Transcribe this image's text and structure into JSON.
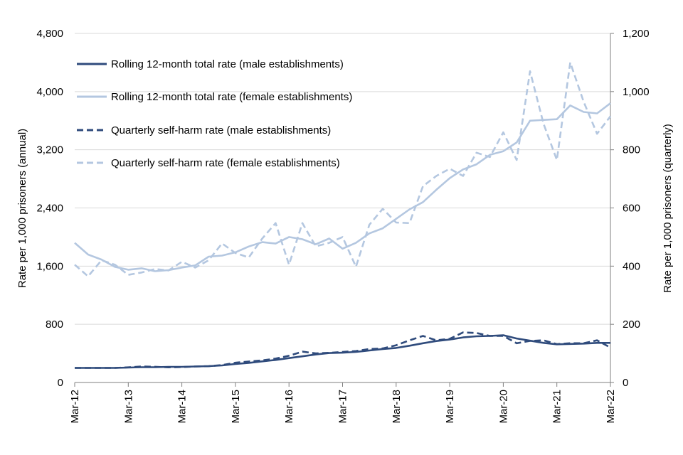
{
  "chart_data": {
    "type": "line",
    "title": "",
    "xlabel": "",
    "ylabel_left": "Rate per 1,000 prisoners (annual)",
    "ylabel_right": "Rate per 1,000 prisoners (quarterly)",
    "ylim_left": [
      0,
      4800
    ],
    "ylim_right": [
      0,
      1200
    ],
    "yticks_left": [
      "0",
      "800",
      "1,600",
      "2,400",
      "3,200",
      "4,000",
      "4,800"
    ],
    "yticks_right": [
      "0",
      "200",
      "400",
      "600",
      "800",
      "1,000",
      "1,200"
    ],
    "xtick_labels": [
      "Mar-12",
      "Mar-13",
      "Mar-14",
      "Mar-15",
      "Mar-16",
      "Mar-17",
      "Mar-18",
      "Mar-19",
      "Mar-20",
      "Mar-21",
      "Mar-22"
    ],
    "x": [
      "Mar-12",
      "Jun-12",
      "Sep-12",
      "Dec-12",
      "Mar-13",
      "Jun-13",
      "Sep-13",
      "Dec-13",
      "Mar-14",
      "Jun-14",
      "Sep-14",
      "Dec-14",
      "Mar-15",
      "Jun-15",
      "Sep-15",
      "Dec-15",
      "Mar-16",
      "Jun-16",
      "Sep-16",
      "Dec-16",
      "Mar-17",
      "Jun-17",
      "Sep-17",
      "Dec-17",
      "Mar-18",
      "Jun-18",
      "Sep-18",
      "Dec-18",
      "Mar-19",
      "Jun-19",
      "Sep-19",
      "Dec-19",
      "Mar-20",
      "Jun-20",
      "Sep-20",
      "Dec-20",
      "Mar-21",
      "Jun-21",
      "Sep-21",
      "Dec-21",
      "Mar-22"
    ],
    "grid": true,
    "legend_position": "top-left",
    "series": [
      {
        "name": "Rolling 12-month total rate (male establishments)",
        "axis": "left",
        "style": "solid",
        "color": "#2f4b7c",
        "values": [
          200,
          200,
          200,
          200,
          205,
          210,
          210,
          215,
          215,
          220,
          225,
          235,
          255,
          270,
          290,
          310,
          335,
          360,
          385,
          405,
          410,
          420,
          440,
          460,
          475,
          505,
          540,
          570,
          590,
          620,
          635,
          640,
          650,
          605,
          575,
          545,
          525,
          530,
          535,
          545,
          545
        ]
      },
      {
        "name": "Rolling 12-month total rate (female establishments)",
        "axis": "left",
        "style": "solid",
        "color": "#b4c7e0",
        "values": [
          1920,
          1760,
          1690,
          1590,
          1550,
          1570,
          1530,
          1545,
          1580,
          1610,
          1730,
          1745,
          1790,
          1870,
          1930,
          1910,
          2000,
          1970,
          1900,
          1980,
          1840,
          1920,
          2050,
          2120,
          2250,
          2380,
          2480,
          2650,
          2810,
          2930,
          3000,
          3130,
          3180,
          3300,
          3600,
          3610,
          3620,
          3810,
          3720,
          3700,
          3840
        ]
      },
      {
        "name": "Quarterly self-harm rate (male establishments)",
        "axis": "right",
        "style": "dashed",
        "color": "#2f4b7c",
        "values": [
          50,
          50,
          50,
          50,
          52,
          55,
          54,
          52,
          53,
          55,
          56,
          60,
          68,
          72,
          76,
          82,
          92,
          106,
          100,
          102,
          105,
          108,
          115,
          117,
          128,
          145,
          160,
          145,
          150,
          172,
          170,
          160,
          160,
          135,
          143,
          145,
          132,
          135,
          135,
          145,
          120
        ]
      },
      {
        "name": "Quarterly self-harm rate (female establishments)",
        "axis": "right",
        "style": "dashed",
        "color": "#b4c7e0",
        "values": [
          405,
          365,
          420,
          405,
          370,
          378,
          390,
          385,
          415,
          395,
          420,
          478,
          445,
          430,
          495,
          548,
          405,
          548,
          468,
          480,
          500,
          398,
          542,
          597,
          550,
          548,
          675,
          710,
          735,
          710,
          790,
          775,
          860,
          765,
          1070,
          890,
          765,
          1100,
          965,
          855,
          915
        ]
      }
    ]
  }
}
